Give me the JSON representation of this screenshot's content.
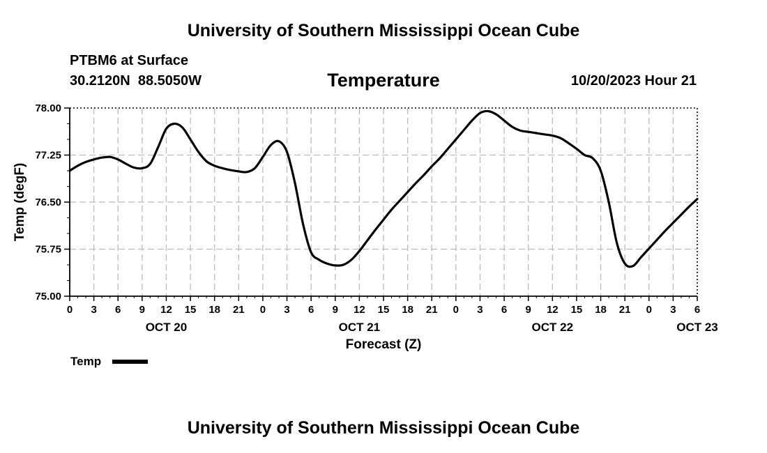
{
  "header": {
    "org_title": "University of Southern Mississippi Ocean Cube",
    "station": "PTBM6 at Surface",
    "coords": "30.2120N  88.5050W",
    "parameter": "Temperature",
    "datetime": "10/20/2023 Hour 21"
  },
  "footer": {
    "org_title": "University of Southern Mississippi Ocean Cube"
  },
  "legend": {
    "label": "Temp",
    "color": "#000000"
  },
  "chart_data": {
    "type": "line",
    "title": "Temperature",
    "xlabel": "Forecast (Z)",
    "ylabel": "Temp (degF)",
    "ylim": [
      75.0,
      78.0
    ],
    "xlim_hours": [
      0,
      78
    ],
    "yticks": [
      "75.00",
      "75.75",
      "76.50",
      "77.25",
      "78.00"
    ],
    "xticks": [
      "0",
      "3",
      "6",
      "9",
      "12",
      "15",
      "18",
      "21",
      "0",
      "3",
      "6",
      "9",
      "12",
      "15",
      "18",
      "21",
      "0",
      "3",
      "6",
      "9",
      "12",
      "15",
      "18",
      "21",
      "0",
      "3",
      "6"
    ],
    "day_labels": [
      {
        "label": "OCT 20",
        "hour": 12
      },
      {
        "label": "OCT 21",
        "hour": 36
      },
      {
        "label": "OCT 22",
        "hour": 60
      },
      {
        "label": "OCT 23",
        "hour": 78
      }
    ],
    "grid": true,
    "legend_position": "bottom-left",
    "series": [
      {
        "name": "Temp",
        "color": "#000000",
        "x": [
          0,
          1,
          2,
          3,
          4,
          5,
          6,
          7,
          8,
          9,
          10,
          11,
          12,
          13,
          14,
          15,
          16,
          17,
          18,
          19,
          20,
          21,
          22,
          23,
          24,
          25,
          26,
          27,
          28,
          29,
          30,
          31,
          32,
          33,
          34,
          35,
          36,
          37,
          38,
          39,
          40,
          41,
          42,
          43,
          44,
          45,
          46,
          47,
          48,
          49,
          50,
          51,
          52,
          53,
          54,
          55,
          56,
          57,
          58,
          59,
          60,
          61,
          62,
          63,
          64,
          65,
          66,
          67,
          68,
          69,
          70,
          71,
          72,
          73,
          74,
          75,
          76,
          77,
          78
        ],
        "values": [
          77.0,
          77.08,
          77.14,
          77.18,
          77.21,
          77.22,
          77.18,
          77.11,
          77.05,
          77.04,
          77.11,
          77.38,
          77.67,
          77.75,
          77.69,
          77.5,
          77.3,
          77.15,
          77.08,
          77.04,
          77.01,
          76.99,
          76.98,
          77.04,
          77.22,
          77.41,
          77.47,
          77.3,
          76.8,
          76.15,
          75.7,
          75.58,
          75.52,
          75.49,
          75.5,
          75.58,
          75.72,
          75.89,
          76.06,
          76.22,
          76.38,
          76.52,
          76.66,
          76.8,
          76.93,
          77.07,
          77.2,
          77.35,
          77.5,
          77.65,
          77.8,
          77.92,
          77.95,
          77.9,
          77.8,
          77.7,
          77.64,
          77.62,
          77.6,
          77.58,
          77.56,
          77.52,
          77.44,
          77.35,
          77.25,
          77.2,
          77.0,
          76.5,
          75.85,
          75.52,
          75.48,
          75.62,
          75.76,
          75.9,
          76.04,
          76.17,
          76.3,
          76.43,
          76.55
        ]
      }
    ]
  }
}
